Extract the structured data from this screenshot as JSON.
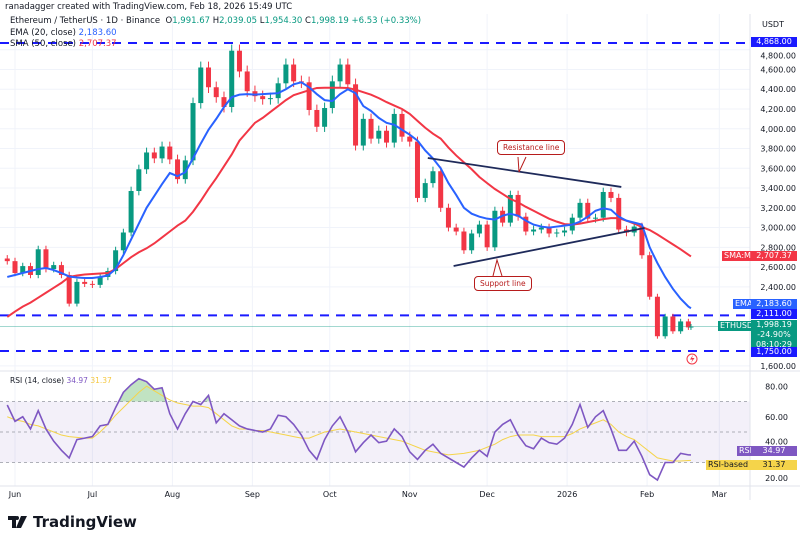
{
  "header": {
    "attribution": "ranadagger created with TradingView.com, Feb 18, 2026 15:49 UTC"
  },
  "legend": {
    "symbol": "Ethereum / TetherUS · 1D · Binance",
    "open_label": "O",
    "open": "1,991.67",
    "high_label": "H",
    "high": "2,039.05",
    "low_label": "L",
    "low": "1,954.30",
    "close_label": "C",
    "close": "1,998.19",
    "change": "+6.53 (+0.33%)",
    "ema_label": "EMA (20, close)",
    "ema_value": "2,183.60",
    "sma_label": "SMA (50, close)",
    "sma_value": "2,707.37",
    "rsi_label": "RSI (14, close)",
    "rsi_value": "34.97",
    "rsi_ma_value": "31.37"
  },
  "price_axis": {
    "currency": "USDT",
    "ticks": [
      "4,800.00",
      "4,600.00",
      "4,400.00",
      "4,200.00",
      "4,000.00",
      "3,800.00",
      "3,600.00",
      "3,400.00",
      "3,200.00",
      "3,000.00",
      "2,800.00",
      "2,600.00",
      "2,400.00",
      "1,600.00"
    ],
    "tick_values": [
      4800,
      4600,
      4400,
      4200,
      4000,
      3800,
      3600,
      3400,
      3200,
      3000,
      2800,
      2600,
      2400,
      1600
    ]
  },
  "tags": {
    "level_high": "4,868.00",
    "sma_label": "SMA:MA",
    "sma_value": "2,707.37",
    "ema_label": "EMA",
    "ema_value": "2,183.60",
    "level_mid": "2,111.00",
    "symbol_label": "ETHUSDT",
    "price": "1,998.19",
    "change_pct": "-24.90%",
    "countdown": "08:10:29",
    "level_low": "1,750.00",
    "rsi_label": "RSI",
    "rsi_value": "34.97",
    "rsi_ma_label": "RSI-based MA",
    "rsi_ma_value": "31.37"
  },
  "rsi_axis": {
    "ticks": [
      "80.00",
      "60.00",
      "40.00",
      "20.00"
    ],
    "tick_values": [
      80,
      60,
      40,
      20
    ]
  },
  "annotations": {
    "resistance": "Resistance line",
    "support": "Support line"
  },
  "footer": {
    "logo": "TradingView"
  },
  "colors": {
    "up": "#089981",
    "down": "#f23645",
    "ema": "#2962ff",
    "sma": "#f23645",
    "rsi": "#7e57c2",
    "rsi_ma": "#f5d44a",
    "level": "#1a1aff",
    "trendline": "#1e2a5a"
  },
  "chart_data": {
    "type": "candlestick",
    "title": "Ethereum / TetherUS · 1D · Binance",
    "ylim": [
      1600,
      4900
    ],
    "x_ticks": [
      {
        "label": "Jun",
        "date": "2025-06-01"
      },
      {
        "label": "Jul",
        "date": "2025-07-01"
      },
      {
        "label": "Aug",
        "date": "2025-08-01"
      },
      {
        "label": "Sep",
        "date": "2025-09-01"
      },
      {
        "label": "Oct",
        "date": "2025-10-01"
      },
      {
        "label": "Nov",
        "date": "2025-11-01"
      },
      {
        "label": "Dec",
        "date": "2025-12-01"
      },
      {
        "label": "2026",
        "date": "2026-01-01"
      },
      {
        "label": "Feb",
        "date": "2026-02-01"
      },
      {
        "label": "Mar",
        "date": "2026-03-01"
      }
    ],
    "dates": [
      "2025-05-29",
      "2025-06-01",
      "2025-06-04",
      "2025-06-07",
      "2025-06-10",
      "2025-06-13",
      "2025-06-16",
      "2025-06-19",
      "2025-06-22",
      "2025-06-25",
      "2025-06-28",
      "2025-07-01",
      "2025-07-04",
      "2025-07-07",
      "2025-07-10",
      "2025-07-13",
      "2025-07-16",
      "2025-07-19",
      "2025-07-22",
      "2025-07-25",
      "2025-07-28",
      "2025-07-31",
      "2025-08-03",
      "2025-08-06",
      "2025-08-09",
      "2025-08-12",
      "2025-08-15",
      "2025-08-18",
      "2025-08-21",
      "2025-08-24",
      "2025-08-27",
      "2025-08-30",
      "2025-09-02",
      "2025-09-05",
      "2025-09-08",
      "2025-09-11",
      "2025-09-14",
      "2025-09-17",
      "2025-09-20",
      "2025-09-23",
      "2025-09-26",
      "2025-09-29",
      "2025-10-02",
      "2025-10-05",
      "2025-10-08",
      "2025-10-11",
      "2025-10-14",
      "2025-10-17",
      "2025-10-20",
      "2025-10-23",
      "2025-10-26",
      "2025-10-29",
      "2025-11-01",
      "2025-11-04",
      "2025-11-07",
      "2025-11-10",
      "2025-11-13",
      "2025-11-16",
      "2025-11-19",
      "2025-11-22",
      "2025-11-25",
      "2025-11-28",
      "2025-12-01",
      "2025-12-04",
      "2025-12-07",
      "2025-12-10",
      "2025-12-13",
      "2025-12-16",
      "2025-12-19",
      "2025-12-22",
      "2025-12-25",
      "2025-12-28",
      "2025-12-31",
      "2026-01-03",
      "2026-01-06",
      "2026-01-09",
      "2026-01-12",
      "2026-01-15",
      "2026-01-18",
      "2026-01-21",
      "2026-01-24",
      "2026-01-27",
      "2026-01-30",
      "2026-02-02",
      "2026-02-05",
      "2026-02-08",
      "2026-02-11",
      "2026-02-14",
      "2026-02-17",
      "2026-02-18"
    ],
    "close": [
      2660,
      2540,
      2610,
      2520,
      2780,
      2580,
      2620,
      2520,
      2230,
      2450,
      2430,
      2420,
      2500,
      2560,
      2770,
      2950,
      3370,
      3590,
      3760,
      3700,
      3820,
      3690,
      3490,
      3680,
      4260,
      4620,
      4420,
      4320,
      4220,
      4790,
      4580,
      4380,
      4330,
      4300,
      4310,
      4460,
      4650,
      4480,
      4470,
      4190,
      4020,
      4210,
      4480,
      4650,
      4450,
      3830,
      4100,
      3900,
      3980,
      3860,
      4150,
      3920,
      3870,
      3300,
      3450,
      3570,
      3200,
      3000,
      2960,
      2770,
      2940,
      3030,
      2800,
      3170,
      3050,
      3330,
      3110,
      2960,
      2980,
      3000,
      2940,
      2950,
      2970,
      3100,
      3250,
      3090,
      3100,
      3360,
      3300,
      2980,
      2950,
      3010,
      2720,
      2300,
      1900,
      2100,
      1950,
      2050,
      1990,
      1998.19
    ],
    "ema20": [
      2500,
      2520,
      2540,
      2560,
      2580,
      2590,
      2570,
      2540,
      2505,
      2495,
      2490,
      2490,
      2500,
      2515,
      2580,
      2720,
      2880,
      3040,
      3200,
      3320,
      3440,
      3552,
      3520,
      3560,
      3700,
      3850,
      3990,
      4100,
      4220,
      4320,
      4345,
      4350,
      4345,
      4350,
      4355,
      4360,
      4400,
      4450,
      4470,
      4420,
      4350,
      4290,
      4280,
      4350,
      4400,
      4360,
      4230,
      4180,
      4110,
      4060,
      4040,
      3990,
      3940,
      3880,
      3780,
      3700,
      3600,
      3450,
      3330,
      3200,
      3140,
      3110,
      3090,
      3080,
      3120,
      3140,
      3120,
      3070,
      3030,
      3010,
      3000,
      3010,
      3020,
      3030,
      3060,
      3110,
      3170,
      3195,
      3180,
      3110,
      3070,
      3050,
      3030,
      2800,
      2640,
      2500,
      2380,
      2280,
      2200,
      2183.6
    ],
    "sma50": [
      2095,
      2150,
      2200,
      2240,
      2290,
      2340,
      2390,
      2440,
      2500,
      2515,
      2525,
      2530,
      2535,
      2540,
      2580,
      2640,
      2700,
      2750,
      2790,
      2840,
      2900,
      2960,
      3020,
      3070,
      3160,
      3270,
      3390,
      3500,
      3620,
      3740,
      3880,
      3970,
      4060,
      4110,
      4170,
      4230,
      4290,
      4340,
      4365,
      4390,
      4413,
      4415,
      4415,
      4415,
      4413,
      4395,
      4370,
      4345,
      4310,
      4270,
      4235,
      4200,
      4150,
      4080,
      4010,
      3950,
      3900,
      3810,
      3730,
      3660,
      3590,
      3512,
      3450,
      3390,
      3340,
      3290,
      3255,
      3210,
      3170,
      3130,
      3090,
      3060,
      3035,
      3030,
      3040,
      3055,
      3070,
      3085,
      3095,
      3095,
      3070,
      3040,
      3005,
      2975,
      2930,
      2880,
      2830,
      2780,
      2725,
      2707.37
    ],
    "rsi": [
      67.7,
      57,
      60,
      52,
      64,
      52,
      44,
      38,
      33,
      45,
      46,
      47,
      54,
      55,
      66,
      76,
      81,
      85,
      83,
      78,
      79,
      62,
      52,
      62,
      70,
      68,
      74,
      56,
      62,
      58,
      54,
      52,
      51,
      50,
      52,
      61,
      60,
      55,
      48,
      38,
      32,
      45,
      54,
      60,
      50,
      37,
      43,
      48,
      43,
      44,
      52,
      47,
      37,
      32,
      38,
      42,
      36,
      33,
      30,
      27,
      33,
      38,
      34,
      50,
      55,
      58,
      48,
      41,
      39,
      46,
      43,
      42,
      46,
      55,
      68,
      53,
      60,
      64,
      52,
      38,
      38,
      44,
      34,
      22,
      18.5,
      30,
      30,
      36,
      35,
      34.97
    ],
    "rsi_ma": [
      60,
      58,
      57,
      55,
      54,
      52,
      50,
      48,
      47,
      46.5,
      46,
      46,
      50,
      55,
      61,
      66,
      71,
      76,
      80,
      77,
      74,
      71,
      69,
      68,
      67,
      67,
      66,
      62,
      58,
      54,
      52,
      52,
      51,
      51,
      50,
      49,
      48,
      47,
      46,
      46,
      48,
      50,
      51,
      52,
      51,
      50,
      49,
      48,
      47,
      46,
      45,
      44,
      42,
      40,
      38,
      37,
      36,
      35,
      35.5,
      36,
      37,
      38,
      40,
      42,
      45,
      47,
      48,
      48,
      48,
      47,
      47,
      47,
      47,
      49,
      52,
      54,
      56,
      58,
      55,
      50,
      47,
      45,
      41,
      37,
      33,
      32,
      31,
      31,
      31.3,
      31.37
    ],
    "horizontal_levels": [
      4868,
      2111,
      1750
    ],
    "current_price": 1998.19,
    "trendlines": [
      {
        "name": "Resistance line",
        "from": {
          "date": "2025-11-08",
          "price": 3704
        },
        "to": {
          "date": "2026-01-22",
          "price": 3411
        }
      },
      {
        "name": "Support line",
        "from": {
          "date": "2025-11-18",
          "price": 2611
        },
        "to": {
          "date": "2026-01-31",
          "price": 2996
        }
      }
    ],
    "rsi_bands": [
      70,
      50,
      30
    ],
    "rsi_ylim": [
      10,
      95
    ]
  }
}
